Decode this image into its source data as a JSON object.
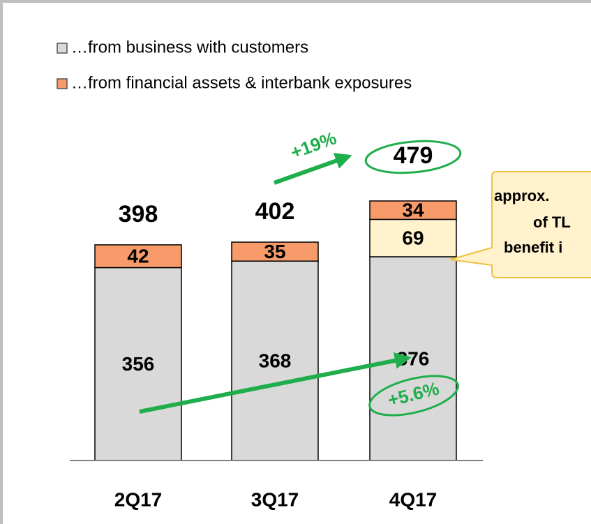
{
  "chart_data": {
    "type": "stacked_bar",
    "categories": [
      "2Q17",
      "3Q17",
      "4Q17"
    ],
    "series": [
      {
        "name": "…from business with customers",
        "color": "#d9d9d9",
        "values": [
          356,
          368,
          376
        ]
      },
      {
        "color": "#fff2cc",
        "values": [
          null,
          null,
          69
        ]
      },
      {
        "name": "…from financial assets & interbank exposures",
        "color": "#f79b6a",
        "values": [
          42,
          35,
          34
        ]
      }
    ],
    "totals": [
      398,
      402,
      479
    ],
    "annotations": {
      "growth_total": "+19%",
      "growth_customers": "+5.6%",
      "callout": [
        "approx.",
        "of TL",
        "benefit i"
      ]
    }
  }
}
